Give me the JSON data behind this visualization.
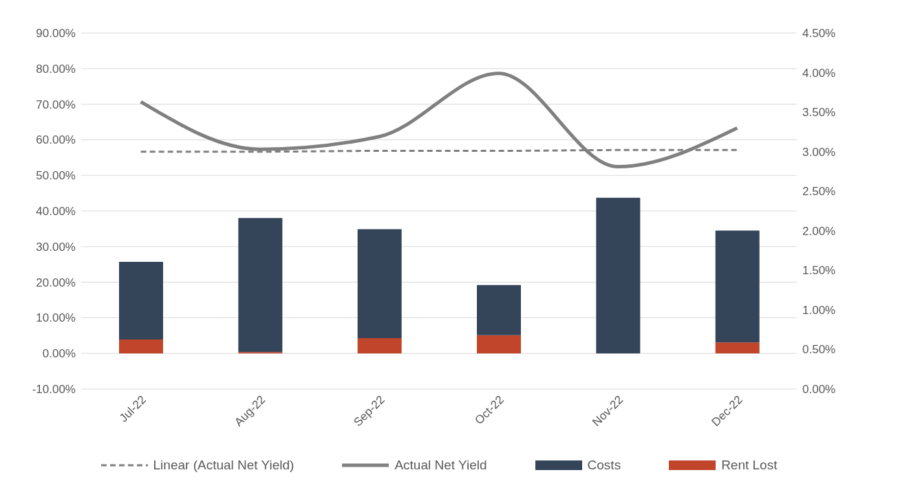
{
  "chart_data": {
    "type": "bar",
    "stacked": true,
    "categories": [
      "Jul-22",
      "Aug-22",
      "Sep-22",
      "Oct-22",
      "Nov-22",
      "Dec-22"
    ],
    "series": [
      {
        "name": "Rent Lost",
        "color": "#c0452a",
        "values": [
          3.9,
          0.4,
          4.3,
          5.1,
          0,
          3.1
        ]
      },
      {
        "name": "Costs",
        "color": "#344459",
        "values": [
          21.8,
          37.6,
          30.6,
          14.1,
          43.7,
          31.4
        ]
      },
      {
        "name": "Actual Net Yield",
        "type": "line",
        "axis": "y2",
        "color": "#808080",
        "line_style": "solid",
        "values": [
          3.63,
          3.03,
          3.19,
          3.99,
          2.81,
          3.3
        ]
      },
      {
        "name": "Linear (Actual Net Yield)",
        "type": "line",
        "axis": "y2",
        "color": "#808080",
        "line_style": "dashed",
        "values": [
          3.0,
          3.0,
          3.01,
          3.01,
          3.02,
          3.02
        ]
      }
    ],
    "ylim": [
      -10,
      90
    ],
    "yticks": [
      {
        "value": -10,
        "label": "-10.00%"
      },
      {
        "value": 0,
        "label": "0.00%"
      },
      {
        "value": 10,
        "label": "10.00%"
      },
      {
        "value": 20,
        "label": "20.00%"
      },
      {
        "value": 30,
        "label": "30.00%"
      },
      {
        "value": 40,
        "label": "40.00%"
      },
      {
        "value": 50,
        "label": "50.00%"
      },
      {
        "value": 60,
        "label": "60.00%"
      },
      {
        "value": 70,
        "label": "70.00%"
      },
      {
        "value": 80,
        "label": "80.00%"
      },
      {
        "value": 90,
        "label": "90.00%"
      }
    ],
    "y2lim": [
      0,
      4.5
    ],
    "y2ticks": [
      {
        "value": 0,
        "label": "0.00%"
      },
      {
        "value": 0.5,
        "label": "0.50%"
      },
      {
        "value": 1,
        "label": "1.00%"
      },
      {
        "value": 1.5,
        "label": "1.50%"
      },
      {
        "value": 2,
        "label": "2.00%"
      },
      {
        "value": 2.5,
        "label": "2.50%"
      },
      {
        "value": 3,
        "label": "3.00%"
      },
      {
        "value": 3.5,
        "label": "3.50%"
      },
      {
        "value": 4,
        "label": "4.00%"
      },
      {
        "value": 4.5,
        "label": "4.50%"
      }
    ],
    "grid": "y",
    "legend": "bottom",
    "marker": "none"
  }
}
